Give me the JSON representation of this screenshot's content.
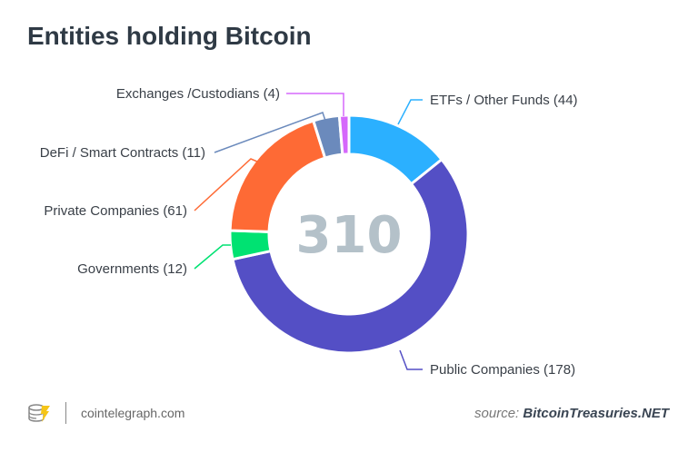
{
  "chart_data": {
    "type": "pie",
    "title": "Entities holding Bitcoin",
    "center_label": "310",
    "slices": [
      {
        "label": "ETFs / Other Funds (44)",
        "value": 44,
        "color": "#2bb0ff"
      },
      {
        "label": "Public Companies (178)",
        "value": 178,
        "color": "#544fc5"
      },
      {
        "label": "Governments (12)",
        "value": 12,
        "color": "#00e272"
      },
      {
        "label": "Private Companies (61)",
        "value": 61,
        "color": "#fe6a35"
      },
      {
        "label": "DeFi / Smart Contracts (11)",
        "value": 11,
        "color": "#6b8abc"
      },
      {
        "label": "Exchanges /Custodians (4)",
        "value": 4,
        "color": "#d568fb"
      }
    ]
  },
  "footer": {
    "brand": "cointelegraph.com",
    "source_prefix": "source:",
    "source_name": "BitcoinTreasuries.NET"
  }
}
